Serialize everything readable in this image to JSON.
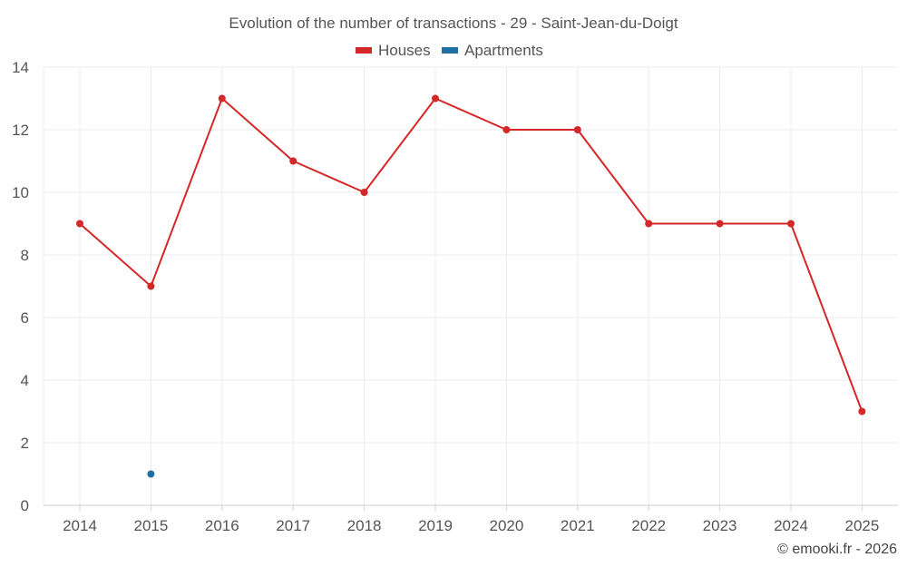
{
  "chart_data": {
    "type": "line",
    "title": "Evolution of the number of transactions - 29 - Saint-Jean-du-Doigt",
    "categories": [
      "2014",
      "2015",
      "2016",
      "2017",
      "2018",
      "2019",
      "2020",
      "2021",
      "2022",
      "2023",
      "2024",
      "2025"
    ],
    "ylim": [
      0,
      14
    ],
    "yticks": [
      0,
      2,
      4,
      6,
      8,
      10,
      12,
      14
    ],
    "grid": true,
    "legend_position": "top-center",
    "series": [
      {
        "name": "Houses",
        "color": "#d62728",
        "values": [
          9,
          7,
          13,
          11,
          10,
          13,
          12,
          12,
          9,
          9,
          9,
          3
        ]
      },
      {
        "name": "Apartments",
        "color": "#1f6fa3",
        "values": [
          null,
          1,
          null,
          null,
          null,
          null,
          null,
          null,
          null,
          null,
          null,
          null
        ]
      }
    ]
  },
  "credit": "© emooki.fr - 2026"
}
